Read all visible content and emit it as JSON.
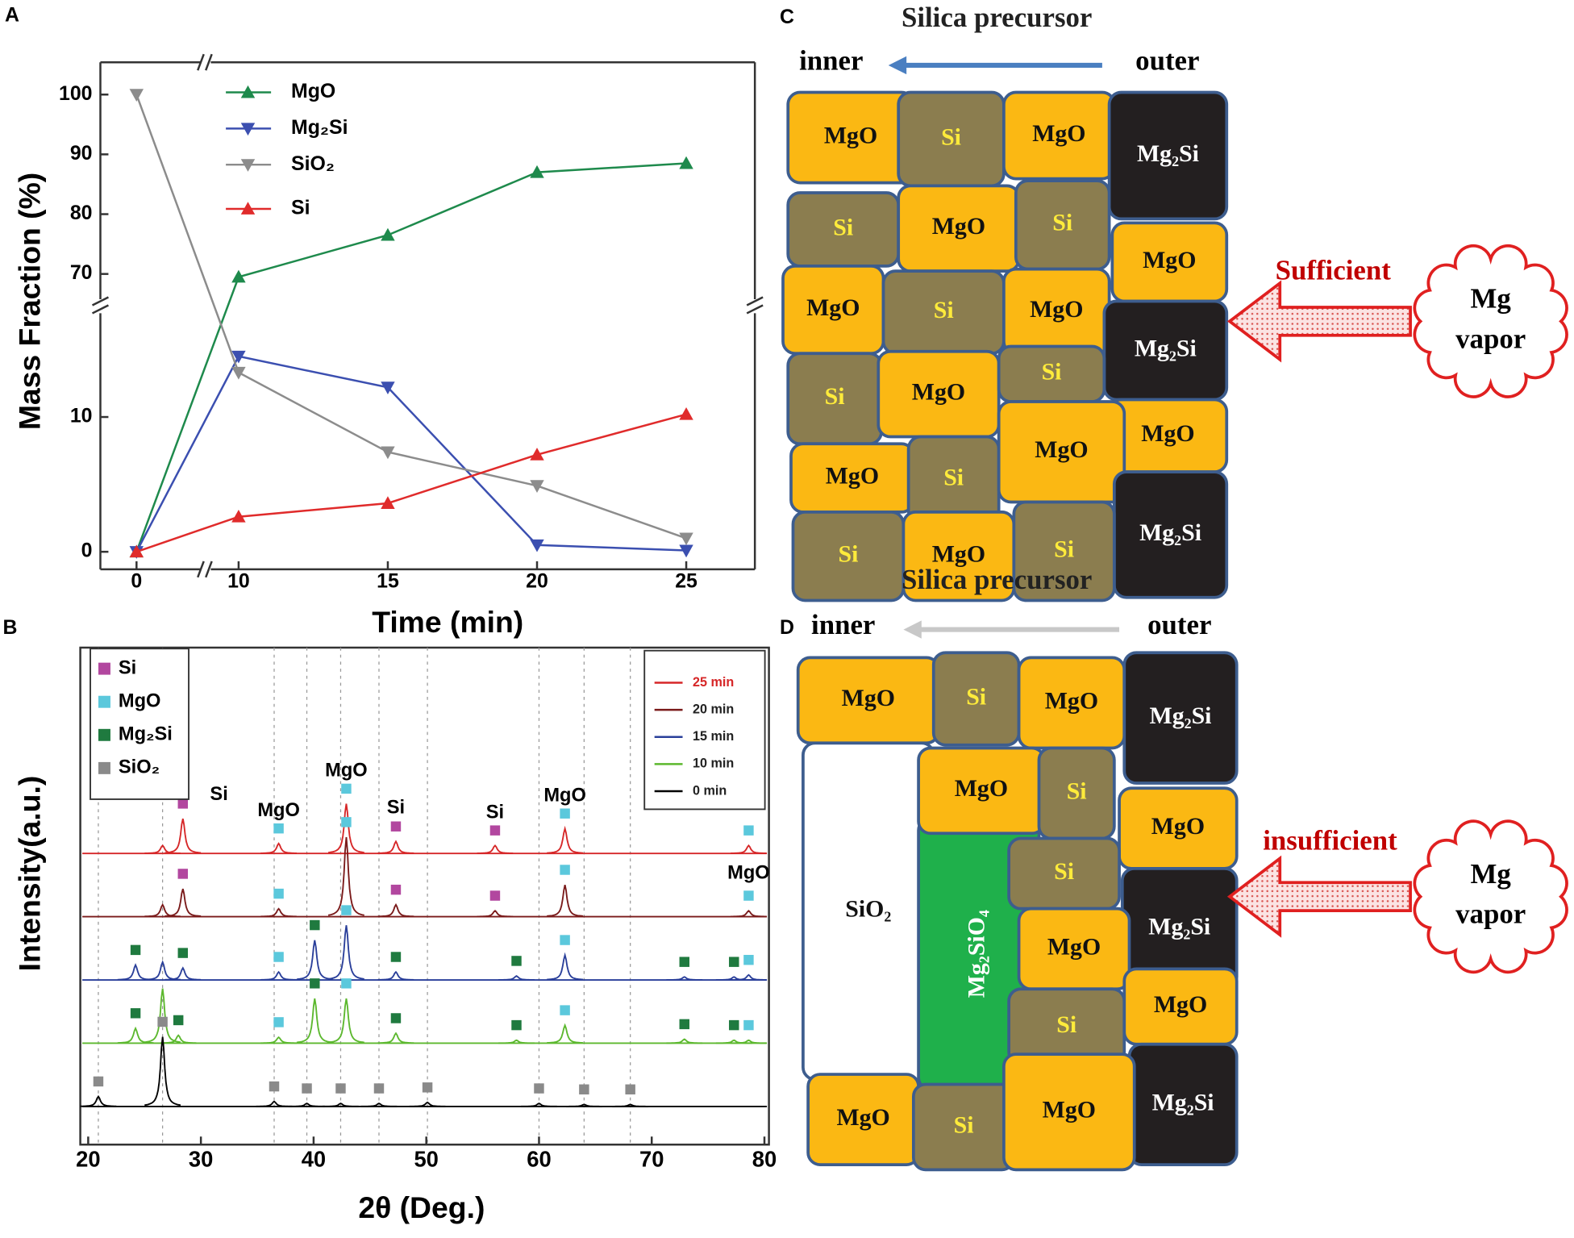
{
  "panel_labels": [
    "A",
    "B",
    "C",
    "D"
  ],
  "chart_data": [
    {
      "type": "line",
      "xlabel": "Time (min)",
      "ylabel": "Mass Fraction (%)",
      "x": [
        0,
        10,
        15,
        20,
        25
      ],
      "xlim_segments": [
        [
          -1.2,
          2.3
        ],
        [
          8.9,
          27.3
        ]
      ],
      "ylim_segments": [
        [
          -1.3,
          17.1
        ],
        [
          64.6,
          105.4
        ]
      ],
      "xticks": [
        0,
        10,
        15,
        20,
        25
      ],
      "yticks": [
        0,
        10,
        70,
        80,
        90,
        100
      ],
      "series": [
        {
          "name": "MgO",
          "color": "#1e8a4c",
          "marker": "triangle-up",
          "values": [
            0,
            69.5,
            76.5,
            87,
            88.5
          ]
        },
        {
          "name": "Mg₂Si",
          "color": "#3b4fb0",
          "marker": "triangle-down",
          "values": [
            0,
            14.5,
            12.2,
            0.5,
            0.1
          ]
        },
        {
          "name": "SiO₂",
          "color": "#8c8c8c",
          "marker": "triangle-down",
          "values": [
            100,
            13.3,
            7.4,
            4.9,
            1.0
          ]
        },
        {
          "name": "Si",
          "color": "#e02b2b",
          "marker": "triangle-up",
          "values": [
            0,
            2.6,
            3.6,
            7.2,
            10.2
          ]
        }
      ]
    },
    {
      "type": "spectra",
      "xlabel": "2θ (Deg.)",
      "ylabel": "Intensity(a.u.)",
      "xlim": [
        19.3,
        80.4
      ],
      "xticks": [
        20,
        30,
        40,
        50,
        60,
        70,
        80
      ],
      "ylim": [
        0,
        500
      ],
      "phases": [
        {
          "name": "Si",
          "color": "#b2479f"
        },
        {
          "name": "MgO",
          "color": "#5bc8dc"
        },
        {
          "name": "Mg₂Si",
          "color": "#1f7a3f"
        },
        {
          "name": "SiO₂",
          "color": "#8a8a8a"
        }
      ],
      "series": [
        {
          "name": "25 min",
          "color": "#d62728",
          "x": [
            26.6,
            28.4,
            36.9,
            42.9,
            47.3,
            56.1,
            62.3,
            78.6
          ],
          "values": [
            8,
            35,
            10,
            50,
            12,
            8,
            25,
            8
          ],
          "phase": [
            null,
            "Si",
            "MgO",
            "MgO",
            "Si",
            "Si",
            "MgO",
            "MgO"
          ]
        },
        {
          "name": "20 min",
          "color": "#7a1a1a",
          "x": [
            26.6,
            28.4,
            36.9,
            42.9,
            47.3,
            56.1,
            62.3,
            78.6
          ],
          "values": [
            12,
            28,
            8,
            80,
            12,
            6,
            32,
            6
          ],
          "phase": [
            null,
            "Si",
            "MgO",
            "MgO",
            "Si",
            "Si",
            "MgO",
            "MgO"
          ]
        },
        {
          "name": "15 min",
          "color": "#2a3f9a",
          "x": [
            24.2,
            26.6,
            28.4,
            36.9,
            40.1,
            42.9,
            47.3,
            58.0,
            62.3,
            72.9,
            77.3,
            78.6
          ],
          "values": [
            15,
            18,
            12,
            8,
            40,
            55,
            8,
            4,
            25,
            3,
            3,
            5
          ],
          "phase": [
            "Mg₂Si",
            null,
            "Mg₂Si",
            "MgO",
            "Mg₂Si",
            "MgO",
            "Mg₂Si",
            "Mg₂Si",
            "MgO",
            "Mg₂Si",
            "Mg₂Si",
            "MgO"
          ]
        },
        {
          "name": "10 min",
          "color": "#5cb82e",
          "x": [
            24.2,
            26.6,
            28.0,
            36.9,
            40.1,
            42.9,
            47.3,
            58.0,
            62.3,
            72.9,
            77.3,
            78.6
          ],
          "values": [
            15,
            55,
            8,
            6,
            45,
            45,
            10,
            3,
            18,
            4,
            3,
            3
          ],
          "phase": [
            "Mg₂Si",
            null,
            "Mg₂Si",
            "MgO",
            "Mg₂Si",
            "MgO",
            "Mg₂Si",
            "Mg₂Si",
            "MgO",
            "Mg₂Si",
            "Mg₂Si",
            "MgO"
          ]
        },
        {
          "name": "0 min",
          "color": "#000000",
          "x": [
            20.9,
            26.6,
            36.5,
            39.4,
            42.4,
            45.8,
            50.1,
            60.0,
            64.0,
            68.1
          ],
          "values": [
            10,
            70,
            5,
            3,
            3,
            3,
            4,
            3,
            2,
            2
          ],
          "phase": [
            "SiO₂",
            "SiO₂",
            "SiO₂",
            "SiO₂",
            "SiO₂",
            "SiO₂",
            "SiO₂",
            "SiO₂",
            "SiO₂",
            "SiO₂"
          ]
        }
      ],
      "annotations": [
        {
          "text": "Si",
          "x": 28.4
        },
        {
          "text": "MgO",
          "x": 36.9
        },
        {
          "text": "MgO",
          "x": 42.9
        },
        {
          "text": "Si",
          "x": 47.3
        },
        {
          "text": "Si",
          "x": 56.1
        },
        {
          "text": "MgO",
          "x": 62.3
        },
        {
          "text": "MgO",
          "x": 78.6
        }
      ]
    }
  ],
  "diagrams": {
    "c": {
      "title": "Silica precursor",
      "inner": "inner",
      "outer": "outer",
      "flow": "Sufficient",
      "cloud": [
        "Mg",
        "vapor"
      ],
      "cells": [
        {
          "label": "MgO",
          "color": "#fbb813"
        },
        {
          "label": "Si",
          "color": "#8b7d4f"
        },
        {
          "label": "MgO",
          "color": "#fbb813"
        },
        {
          "label": "Mg₂Si",
          "color": "#231f20"
        },
        {
          "label": "Si",
          "color": "#8b7d4f"
        },
        {
          "label": "MgO",
          "color": "#fbb813"
        },
        {
          "label": "Si",
          "color": "#8b7d4f"
        },
        {
          "label": "MgO",
          "color": "#fbb813"
        },
        {
          "label": "MgO",
          "color": "#fbb813"
        },
        {
          "label": "Si",
          "color": "#8b7d4f"
        },
        {
          "label": "MgO",
          "color": "#fbb813"
        },
        {
          "label": "Mg₂Si",
          "color": "#231f20"
        },
        {
          "label": "Si",
          "color": "#8b7d4f"
        },
        {
          "label": "MgO",
          "color": "#fbb813"
        },
        {
          "label": "Si",
          "color": "#8b7d4f"
        },
        {
          "label": "MgO",
          "color": "#fbb813"
        },
        {
          "label": "MgO",
          "color": "#fbb813"
        },
        {
          "label": "Si",
          "color": "#8b7d4f"
        },
        {
          "label": "MgO",
          "color": "#fbb813"
        },
        {
          "label": "Mg₂Si",
          "color": "#231f20"
        },
        {
          "label": "Si",
          "color": "#8b7d4f"
        },
        {
          "label": "MgO",
          "color": "#fbb813"
        },
        {
          "label": "Si",
          "color": "#8b7d4f"
        }
      ]
    },
    "d": {
      "title": "Silica precursor",
      "inner": "inner",
      "outer": "outer",
      "flow": "insufficient",
      "cloud": [
        "Mg",
        "vapor"
      ],
      "cells": [
        {
          "label": "SiO₂",
          "color": "#ffffff"
        },
        {
          "label": "Mg₂SiO₄",
          "color": "#1fb04b"
        },
        {
          "label": "MgO",
          "color": "#fbb813"
        },
        {
          "label": "Si",
          "color": "#8b7d4f"
        },
        {
          "label": "MgO",
          "color": "#fbb813"
        },
        {
          "label": "Mg₂Si",
          "color": "#231f20"
        },
        {
          "label": "MgO",
          "color": "#fbb813"
        },
        {
          "label": "Si",
          "color": "#8b7d4f"
        },
        {
          "label": "MgO",
          "color": "#fbb813"
        },
        {
          "label": "Si",
          "color": "#8b7d4f"
        },
        {
          "label": "Mg₂Si",
          "color": "#231f20"
        },
        {
          "label": "MgO",
          "color": "#fbb813"
        },
        {
          "label": "Si",
          "color": "#8b7d4f"
        },
        {
          "label": "MgO",
          "color": "#fbb813"
        },
        {
          "label": "Mg₂Si",
          "color": "#231f20"
        },
        {
          "label": "MgO",
          "color": "#fbb813"
        },
        {
          "label": "Si",
          "color": "#8b7d4f"
        },
        {
          "label": "MgO",
          "color": "#fbb813"
        }
      ]
    }
  }
}
